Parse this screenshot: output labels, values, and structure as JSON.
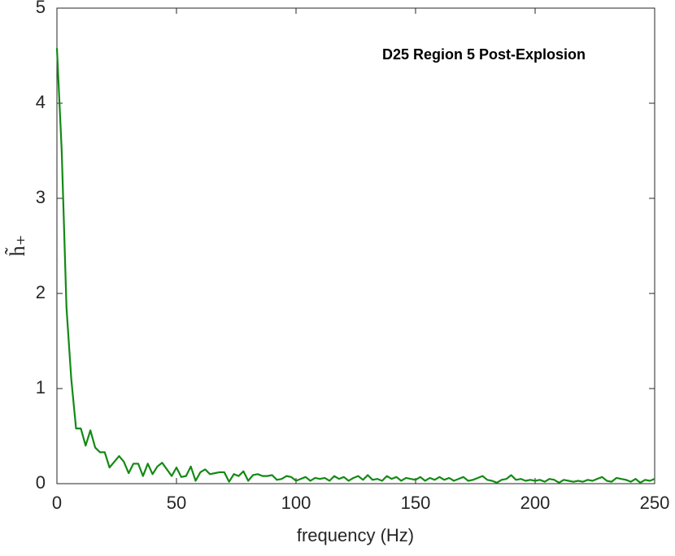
{
  "chart_data": {
    "type": "line",
    "annotation": "D25 Region 5 Post-Explosion",
    "xlabel": "frequency (Hz)",
    "ylabel": "h̃₊",
    "x": [
      0,
      2,
      4,
      6,
      8,
      10,
      12,
      14,
      16,
      18,
      20,
      22,
      24,
      26,
      28,
      30,
      32,
      34,
      36,
      38,
      40,
      42,
      44,
      46,
      48,
      50,
      52,
      54,
      56,
      58,
      60,
      62,
      64,
      66,
      68,
      70,
      72,
      74,
      76,
      78,
      80,
      82,
      84,
      86,
      88,
      90,
      92,
      94,
      96,
      98,
      100,
      102,
      104,
      106,
      108,
      110,
      112,
      114,
      116,
      118,
      120,
      122,
      124,
      126,
      128,
      130,
      132,
      134,
      136,
      138,
      140,
      142,
      144,
      146,
      148,
      150,
      152,
      154,
      156,
      158,
      160,
      162,
      164,
      166,
      168,
      170,
      172,
      174,
      176,
      178,
      180,
      182,
      184,
      186,
      188,
      190,
      192,
      194,
      196,
      198,
      200,
      202,
      204,
      206,
      208,
      210,
      212,
      214,
      216,
      218,
      220,
      222,
      224,
      226,
      228,
      230,
      232,
      234,
      236,
      238,
      240,
      242,
      244,
      246,
      248,
      250
    ],
    "series": [
      {
        "color": "#138a13",
        "values": [
          4.58,
          3.5,
          1.85,
          1.1,
          0.58,
          0.58,
          0.4,
          0.56,
          0.38,
          0.33,
          0.33,
          0.17,
          0.23,
          0.29,
          0.23,
          0.11,
          0.21,
          0.21,
          0.08,
          0.21,
          0.1,
          0.18,
          0.22,
          0.15,
          0.08,
          0.17,
          0.07,
          0.08,
          0.18,
          0.03,
          0.12,
          0.15,
          0.1,
          0.11,
          0.12,
          0.12,
          0.02,
          0.1,
          0.08,
          0.13,
          0.03,
          0.09,
          0.1,
          0.08,
          0.08,
          0.09,
          0.04,
          0.05,
          0.08,
          0.07,
          0.03,
          0.05,
          0.07,
          0.03,
          0.06,
          0.05,
          0.06,
          0.03,
          0.08,
          0.05,
          0.07,
          0.03,
          0.06,
          0.08,
          0.04,
          0.09,
          0.04,
          0.05,
          0.03,
          0.08,
          0.05,
          0.07,
          0.03,
          0.06,
          0.05,
          0.04,
          0.07,
          0.03,
          0.06,
          0.04,
          0.07,
          0.04,
          0.06,
          0.03,
          0.05,
          0.07,
          0.03,
          0.04,
          0.06,
          0.08,
          0.04,
          0.03,
          0.01,
          0.04,
          0.05,
          0.09,
          0.04,
          0.05,
          0.03,
          0.04,
          0.03,
          0.04,
          0.02,
          0.05,
          0.04,
          0.01,
          0.04,
          0.03,
          0.02,
          0.03,
          0.02,
          0.04,
          0.03,
          0.05,
          0.07,
          0.03,
          0.02,
          0.06,
          0.05,
          0.04,
          0.02,
          0.05,
          0.01,
          0.04,
          0.03,
          0.05
        ]
      }
    ],
    "xlim": [
      0,
      250
    ],
    "xticks": [
      0,
      50,
      100,
      150,
      200,
      250
    ],
    "ylim": [
      0,
      5
    ],
    "yticks": [
      0,
      1,
      2,
      3,
      4,
      5
    ]
  }
}
